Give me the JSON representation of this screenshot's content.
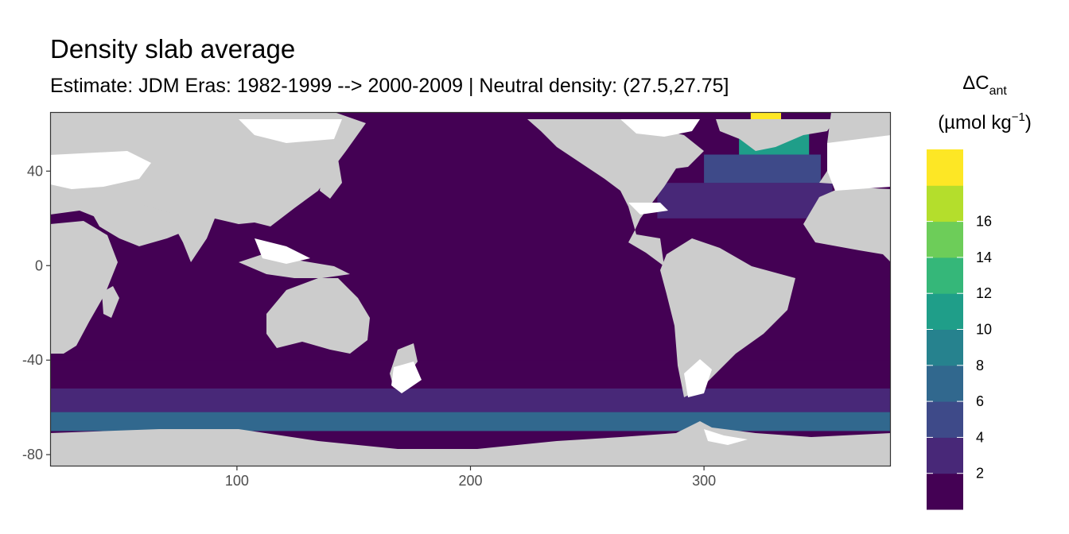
{
  "title": "Density slab average",
  "subtitle": "Estimate: JDM Eras: 1982-1999 --> 2000-2009 | Neutral density: (27.5,27.75]",
  "chart_data": {
    "type": "heatmap",
    "xlim": [
      20,
      380
    ],
    "ylim": [
      -85,
      65
    ],
    "x_ticks": [
      100,
      200,
      300
    ],
    "y_ticks": [
      40,
      0,
      -40,
      -80
    ],
    "grid": false,
    "legend_position": "right",
    "legend": {
      "title_main": "ΔC",
      "title_sub": "ant",
      "unit_open": "(µmol kg",
      "unit_sup": "−1",
      "unit_close": ")",
      "breaks": [
        2,
        4,
        6,
        8,
        10,
        12,
        14,
        16
      ],
      "bins": [
        {
          "range": [
            0,
            2
          ],
          "color": "#440154"
        },
        {
          "range": [
            2,
            4
          ],
          "color": "#482878"
        },
        {
          "range": [
            4,
            6
          ],
          "color": "#3E4A89"
        },
        {
          "range": [
            6,
            8
          ],
          "color": "#31688E"
        },
        {
          "range": [
            8,
            10
          ],
          "color": "#26828E"
        },
        {
          "range": [
            10,
            12
          ],
          "color": "#1F9E89"
        },
        {
          "range": [
            12,
            14
          ],
          "color": "#35B779"
        },
        {
          "range": [
            14,
            16
          ],
          "color": "#6DCD59"
        },
        {
          "range": [
            16,
            18
          ],
          "color": "#B4DE2C"
        },
        {
          "range": [
            18,
            20
          ],
          "color": "#FDE725"
        }
      ]
    },
    "land_color": "#CCCCCC",
    "missing_color": "#FFFFFF",
    "zones": [
      {
        "name": "global-ocean",
        "lon": [
          20,
          380
        ],
        "lat": [
          -40,
          65
        ],
        "bin": 0
      },
      {
        "name": "southern-belt-1",
        "lon": [
          20,
          380
        ],
        "lat": [
          -52,
          -40
        ],
        "bin": 0
      },
      {
        "name": "southern-belt-2",
        "lon": [
          20,
          380
        ],
        "lat": [
          -62,
          -52
        ],
        "bin": 1
      },
      {
        "name": "southern-belt-3",
        "lon": [
          20,
          380
        ],
        "lat": [
          -70,
          -62
        ],
        "bin": 3
      },
      {
        "name": "north-atlantic-subtropical",
        "lon": [
          280,
          355
        ],
        "lat": [
          20,
          35
        ],
        "bin": 1
      },
      {
        "name": "north-atlantic-midlat",
        "lon": [
          300,
          350
        ],
        "lat": [
          35,
          47
        ],
        "bin": 2
      },
      {
        "name": "labrador-irminger",
        "lon": [
          315,
          345
        ],
        "lat": [
          47,
          60
        ],
        "bin": 5
      },
      {
        "name": "labrador-core",
        "lon": [
          320,
          333
        ],
        "lat": [
          53,
          65
        ],
        "bin": 9
      }
    ]
  }
}
